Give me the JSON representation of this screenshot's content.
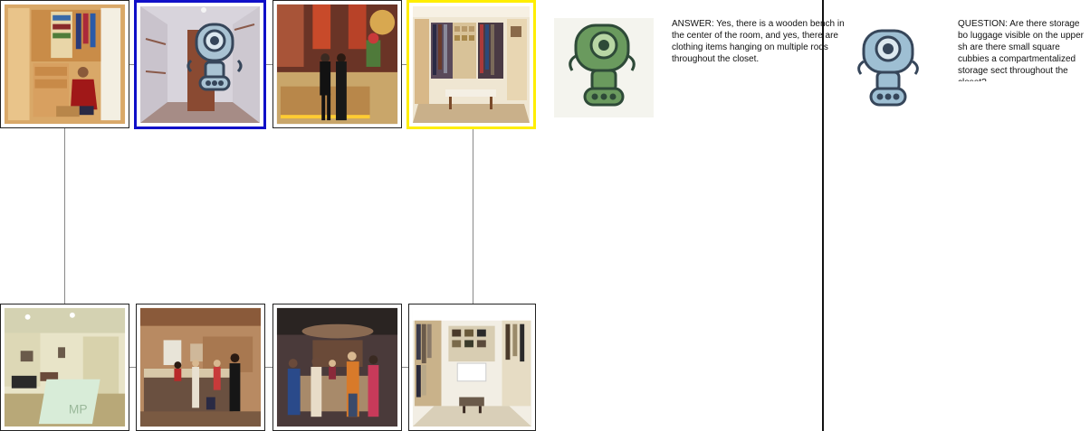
{
  "tiles": [
    {
      "id": "closet-man",
      "scene": "closet-with-man"
    },
    {
      "id": "empty-room-robot",
      "scene": "empty-room-with-robot",
      "highlight": "blue"
    },
    {
      "id": "hotel-lobby-couple",
      "scene": "hotel-reception-couple"
    },
    {
      "id": "walk-in-closet",
      "scene": "walk-in-closet-bench",
      "highlight": "yellow"
    },
    {
      "id": "office-lobby",
      "scene": "office-lobby"
    },
    {
      "id": "reception-desk",
      "scene": "reception-desk"
    },
    {
      "id": "front-desk-people",
      "scene": "front-desk-people"
    },
    {
      "id": "boutique-closet",
      "scene": "boutique-closet"
    }
  ],
  "colors": {
    "blue_highlight": "#1010c8",
    "yellow_highlight": "#ffee00",
    "answer_robot": "#6a9a5e",
    "question_robot": "#9ebfd3"
  },
  "dialogue": {
    "answer": {
      "icon": "green-robot-icon",
      "text": "ANSWER: Yes, there is a wooden bench in the center of the room, and yes, there are clothing items hanging on multiple rods throughout the closet."
    },
    "question": {
      "icon": "blue-robot-icon",
      "text": "QUESTION: Are there storage bo luggage visible on the upper sh are there small square cubbies a compartmentalized storage sect throughout the closet?"
    }
  }
}
